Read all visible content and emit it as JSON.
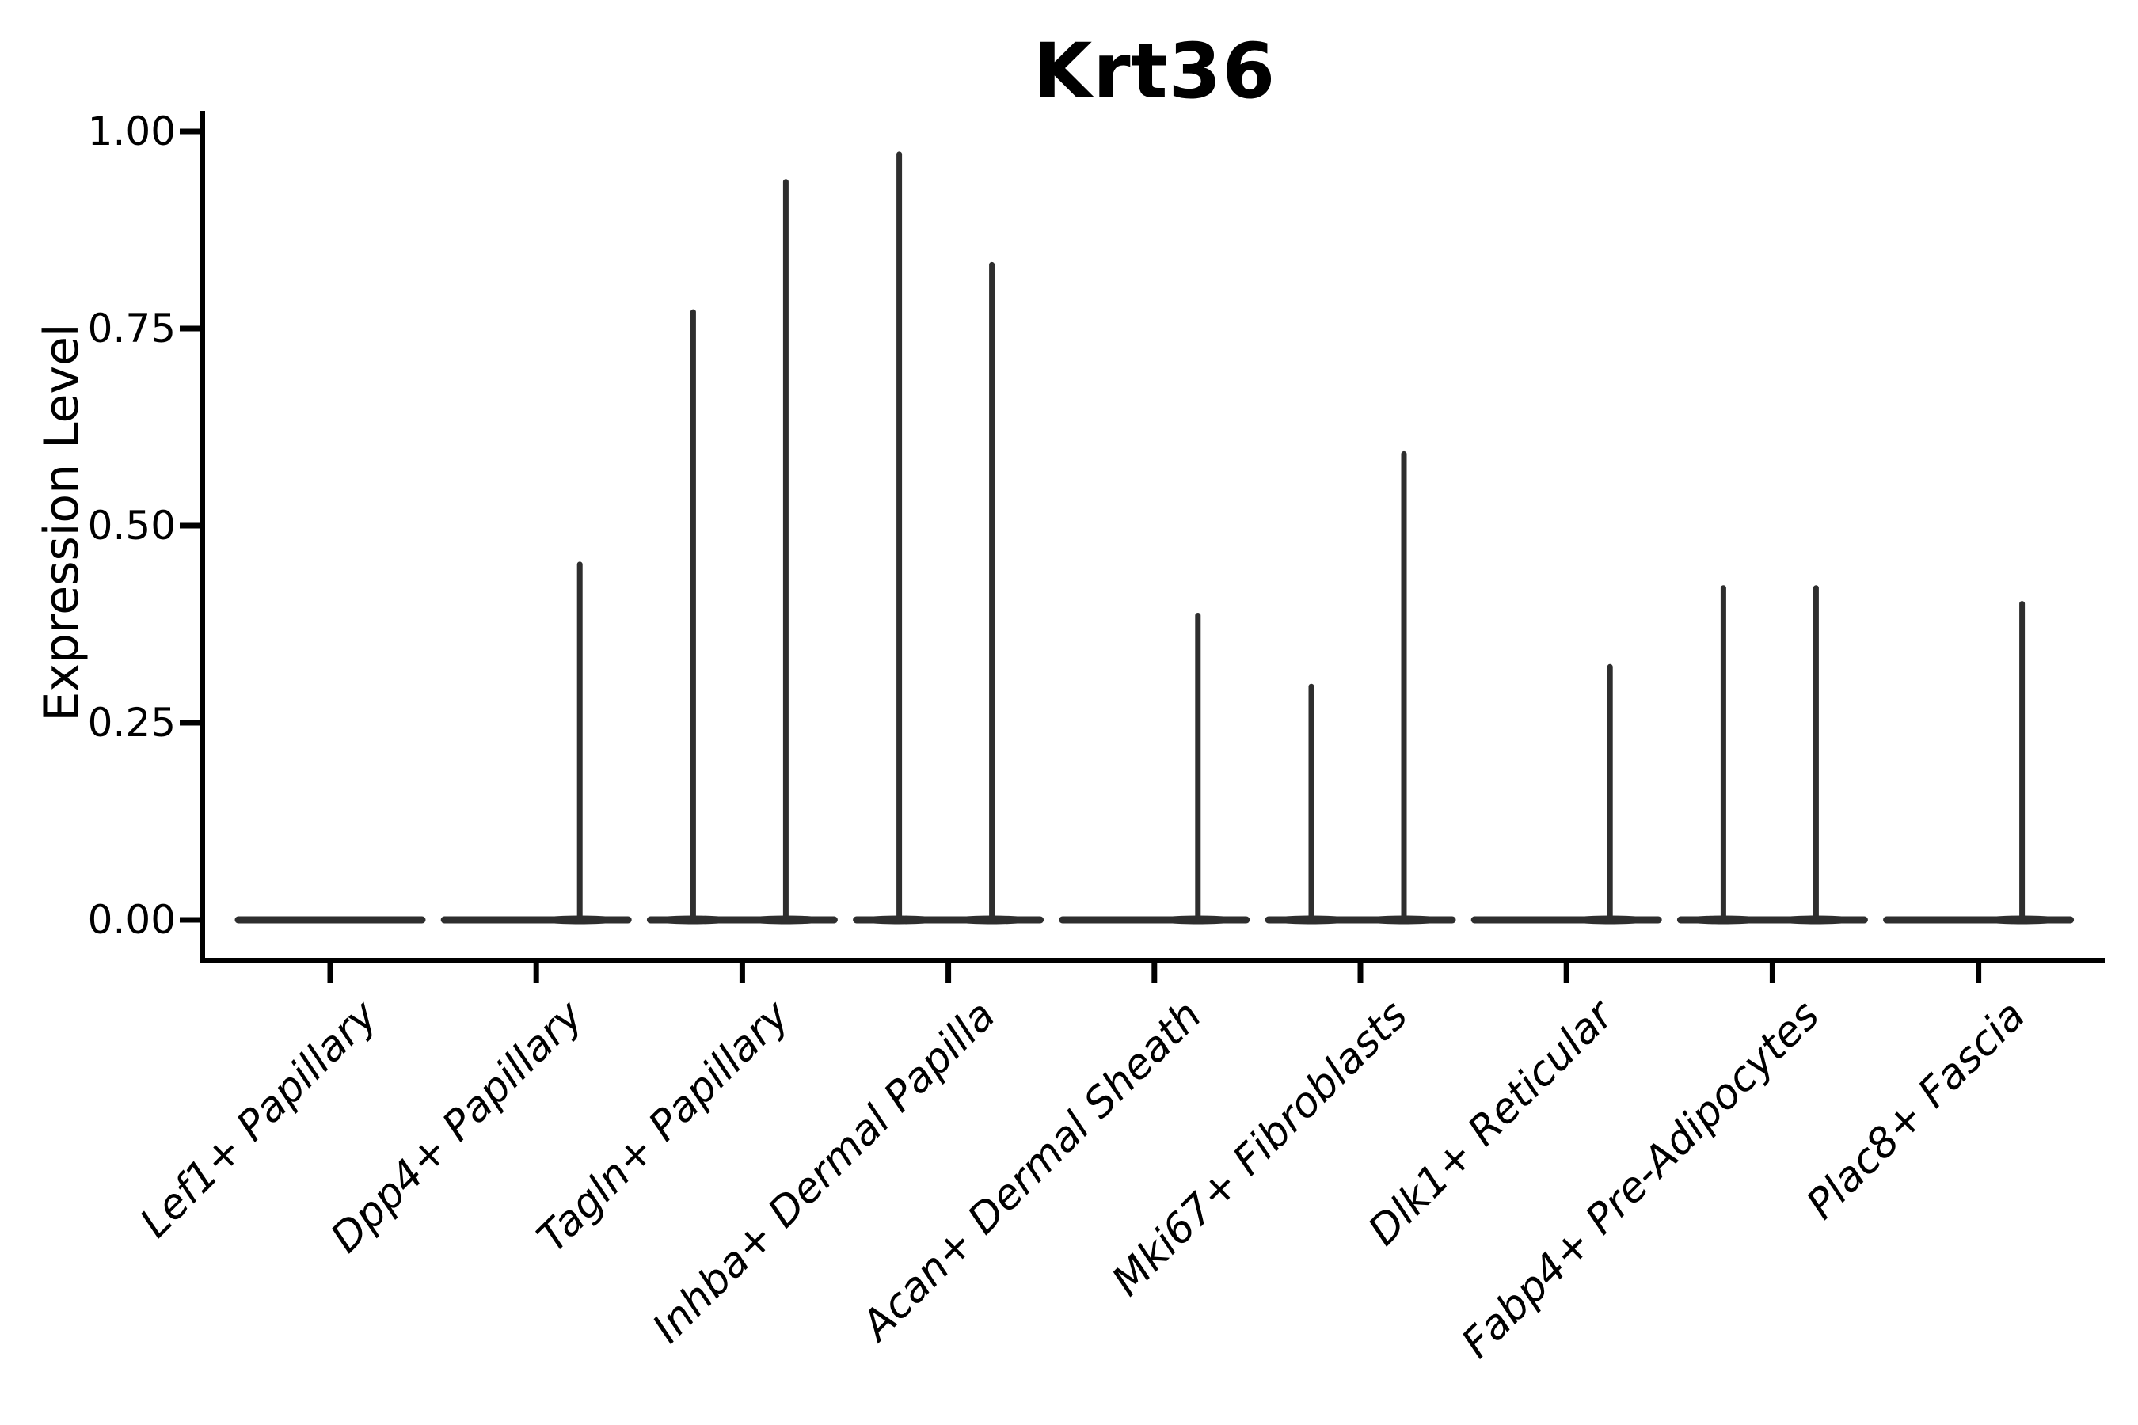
{
  "chart_data": {
    "type": "violin",
    "title": "Krt36",
    "ylabel": "Expression Level",
    "xlabel": "",
    "ylim": [
      0,
      1.05
    ],
    "grid": false,
    "legend": false,
    "yticks": [
      {
        "value": 0.0,
        "label": "0.00"
      },
      {
        "value": 0.25,
        "label": "0.25"
      },
      {
        "value": 0.5,
        "label": "0.50"
      },
      {
        "value": 0.75,
        "label": "0.75"
      },
      {
        "value": 1.0,
        "label": "1.00"
      }
    ],
    "categories": [
      "Lef1+ Papillary",
      "Dpp4+ Papillary",
      "Tagln+ Papillary",
      "Inhba+ Dermal Papilla",
      "Acan+ Dermal Sheath",
      "Mki67+ Fibroblasts",
      "Dlk1+ Reticular",
      "Fabp4+ Pre-Adipocytes",
      "Plac8+ Fascia"
    ],
    "violins": [
      {
        "category": "Lef1+ Papillary",
        "zero_body": true,
        "spikes": []
      },
      {
        "category": "Dpp4+ Papillary",
        "zero_body": true,
        "spikes": [
          {
            "side": "right",
            "max_value": 0.455
          }
        ]
      },
      {
        "category": "Tagln+ Papillary",
        "zero_body": true,
        "spikes": [
          {
            "side": "left",
            "max_value": 0.775
          },
          {
            "side": "right",
            "max_value": 0.94
          }
        ]
      },
      {
        "category": "Inhba+ Dermal Papilla",
        "zero_body": true,
        "spikes": [
          {
            "side": "left",
            "max_value": 0.975
          },
          {
            "side": "right",
            "max_value": 0.835
          }
        ]
      },
      {
        "category": "Acan+ Dermal Sheath",
        "zero_body": true,
        "spikes": [
          {
            "side": "right",
            "max_value": 0.39
          }
        ]
      },
      {
        "category": "Mki67+ Fibroblasts",
        "zero_body": true,
        "spikes": [
          {
            "side": "left",
            "max_value": 0.3
          },
          {
            "side": "right",
            "max_value": 0.595
          }
        ]
      },
      {
        "category": "Dlk1+ Reticular",
        "zero_body": true,
        "spikes": [
          {
            "side": "right",
            "max_value": 0.325
          }
        ]
      },
      {
        "category": "Fabp4+ Pre-Adipocytes",
        "zero_body": true,
        "spikes": [
          {
            "side": "left",
            "max_value": 0.425
          },
          {
            "side": "right",
            "max_value": 0.425
          }
        ]
      },
      {
        "category": "Plac8+ Fascia",
        "zero_body": true,
        "spikes": [
          {
            "side": "right",
            "max_value": 0.405
          }
        ]
      }
    ],
    "colors": {
      "violin": "#2e2e2e",
      "axis": "#000000",
      "text": "#000000",
      "background": "#ffffff"
    }
  }
}
